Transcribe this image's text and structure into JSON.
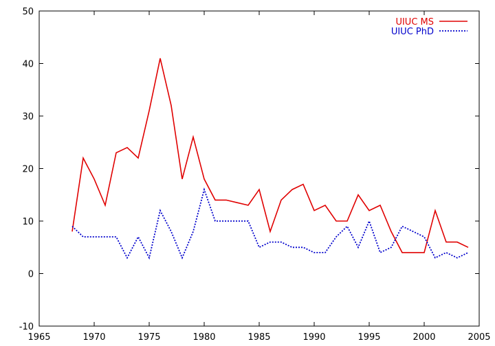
{
  "chart_data": {
    "type": "line",
    "title": "",
    "xlabel": "",
    "ylabel": "",
    "xlim": [
      1965,
      2005
    ],
    "ylim": [
      -10,
      50
    ],
    "x_ticks": [
      1965,
      1970,
      1975,
      1980,
      1985,
      1990,
      1995,
      2000,
      2005
    ],
    "y_ticks": [
      -10,
      0,
      10,
      20,
      30,
      40,
      50
    ],
    "grid": false,
    "legend_position": "top-right",
    "series": [
      {
        "name": "UIUC MS",
        "color": "#e00000",
        "style": "solid",
        "x": [
          1968,
          1969,
          1970,
          1971,
          1972,
          1973,
          1974,
          1975,
          1976,
          1977,
          1978,
          1979,
          1980,
          1981,
          1982,
          1983,
          1984,
          1985,
          1986,
          1987,
          1988,
          1989,
          1990,
          1991,
          1992,
          1993,
          1994,
          1995,
          1996,
          1997,
          1998,
          1999,
          2000,
          2001,
          2002,
          2003,
          2004
        ],
        "values": [
          8,
          22,
          18,
          13,
          23,
          24,
          22,
          31,
          41,
          32,
          18,
          26,
          18,
          14,
          14,
          13.5,
          13,
          16,
          8,
          14,
          16,
          17,
          12,
          13,
          10,
          10,
          15,
          12,
          13,
          8,
          4,
          4,
          4,
          12,
          6,
          6,
          5
        ]
      },
      {
        "name": "UIUC PhD",
        "color": "#0000cc",
        "style": "dotted",
        "x": [
          1968,
          1969,
          1970,
          1971,
          1972,
          1973,
          1974,
          1975,
          1976,
          1977,
          1978,
          1979,
          1980,
          1981,
          1982,
          1983,
          1984,
          1985,
          1986,
          1987,
          1988,
          1989,
          1990,
          1991,
          1992,
          1993,
          1994,
          1995,
          1996,
          1997,
          1998,
          1999,
          2000,
          2001,
          2002,
          2003,
          2004
        ],
        "values": [
          9,
          7,
          7,
          7,
          7,
          3,
          7,
          3,
          12,
          8,
          3,
          8,
          16,
          10,
          10,
          10,
          10,
          5,
          6,
          6,
          5,
          5,
          4,
          4,
          7,
          9,
          5,
          10,
          4,
          5,
          9,
          8,
          7,
          3,
          4,
          3,
          4
        ]
      }
    ]
  }
}
